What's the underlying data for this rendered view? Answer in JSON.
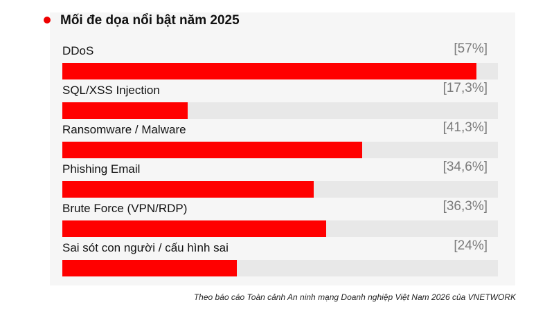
{
  "title": "Mối đe dọa nổi bật năm 2025",
  "source": "Theo báo cáo Toàn cảnh An ninh mạng Doanh nghiệp Việt Nam 2026 của VNETWORK",
  "colors": {
    "bar": "#ff0000",
    "track": "#e8e8e8",
    "panel": "#f6f6f6",
    "title_dot": "#ee0000"
  },
  "chart_data": {
    "type": "bar",
    "title": "Mối đe dọa nổi bật năm 2025",
    "categories": [
      "DDoS",
      "SQL/XSS Injection",
      "Ransomware / Malware",
      "Phishing Email",
      "Brute Force (VPN/RDP)",
      "Sai sót con người / cấu hình sai"
    ],
    "values": [
      57,
      17.3,
      41.3,
      34.6,
      36.3,
      24
    ],
    "value_labels": [
      "[57%]",
      "[17,3%]",
      "[41,3%]",
      "[34,6%]",
      "[36,3%]",
      "[24%]"
    ],
    "xlim": [
      0,
      60
    ],
    "orientation": "horizontal",
    "grid": false
  }
}
